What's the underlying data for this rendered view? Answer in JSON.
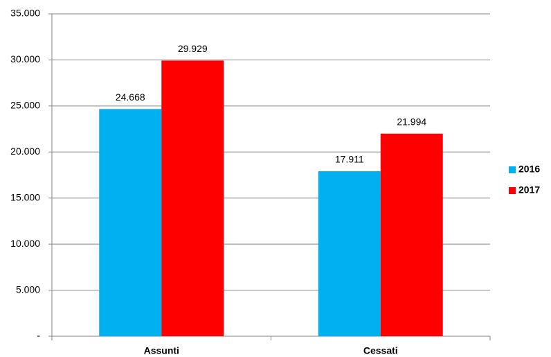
{
  "chart_data": {
    "type": "bar",
    "categories": [
      "Assunti",
      "Cessati"
    ],
    "series": [
      {
        "name": "2016",
        "color": "#00b0f0",
        "values": [
          24668,
          17911
        ],
        "value_labels": [
          "24.668",
          "17.911"
        ]
      },
      {
        "name": "2017",
        "color": "#ff0000",
        "values": [
          29929,
          21994
        ],
        "value_labels": [
          "29.929",
          "21.994"
        ]
      }
    ],
    "ylim": [
      0,
      35000
    ],
    "yticks": [
      {
        "value": 0,
        "label": "-"
      },
      {
        "value": 5000,
        "label": "5.000"
      },
      {
        "value": 10000,
        "label": "10.000"
      },
      {
        "value": 15000,
        "label": "15.000"
      },
      {
        "value": 20000,
        "label": "20.000"
      },
      {
        "value": 25000,
        "label": "25.000"
      },
      {
        "value": 30000,
        "label": "30.000"
      },
      {
        "value": 35000,
        "label": "35.000"
      }
    ],
    "grid": true,
    "legend": "right"
  }
}
